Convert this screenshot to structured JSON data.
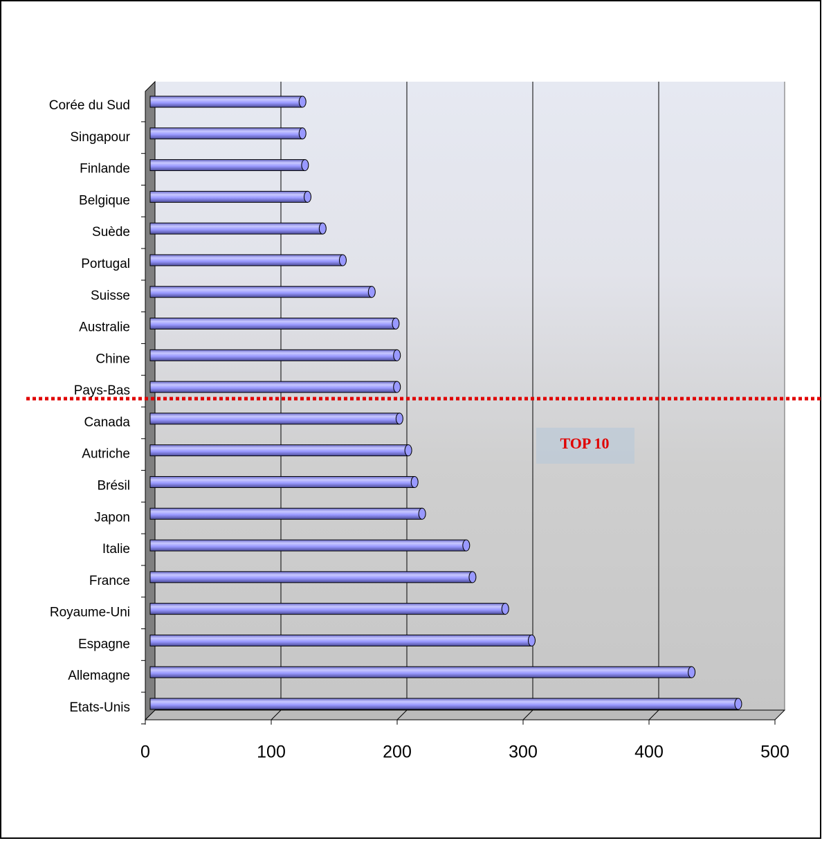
{
  "chart_data": {
    "type": "bar",
    "orientation": "horizontal",
    "categories": [
      "Corée du Sud",
      "Singapour",
      "Finlande",
      "Belgique",
      "Suède",
      "Portugal",
      "Suisse",
      "Australie",
      "Chine",
      "Pays-Bas",
      "Canada",
      "Autriche",
      "Brésil",
      "Japon",
      "Italie",
      "France",
      "Royaume-Uni",
      "Espagne",
      "Allemagne",
      "Etats-Unis"
    ],
    "values": [
      121,
      121,
      123,
      125,
      137,
      153,
      176,
      195,
      196,
      196,
      198,
      205,
      210,
      216,
      251,
      256,
      282,
      303,
      430,
      467
    ],
    "color": "#9999ff",
    "xlim": [
      0,
      500
    ],
    "xticks": [
      0,
      100,
      200,
      300,
      400,
      500
    ],
    "grid": true,
    "annotation": "TOP 10"
  }
}
